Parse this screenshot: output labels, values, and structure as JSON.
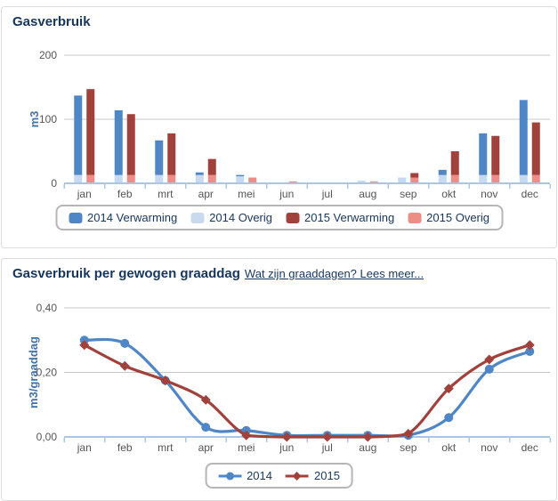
{
  "colors": {
    "title": "#17365d",
    "axis_title_blue": "#4272a8",
    "tick_text": "#555555",
    "gridline": "#c8c8c8",
    "axis_line": "#a9c6e5",
    "panel_border": "#dcdcdc",
    "legend_border": "#b6b6b6",
    "blue_2014": "#4f86c6",
    "light_blue_2014": "#c9d9f0",
    "red_2015": "#a0413c",
    "pink_2015": "#ee8c86"
  },
  "chart_data": [
    {
      "type": "bar",
      "title": "Gasverbruik",
      "ylabel": "m3",
      "ylim": [
        0,
        200
      ],
      "grid": true,
      "legend_position": "bottom",
      "yticks": [
        {
          "value": 0,
          "label": "0"
        },
        {
          "value": 100,
          "label": "100"
        },
        {
          "value": 200,
          "label": "200"
        }
      ],
      "categories": [
        "jan",
        "feb",
        "mrt",
        "apr",
        "mei",
        "jun",
        "jul",
        "aug",
        "sep",
        "okt",
        "nov",
        "dec"
      ],
      "series": [
        {
          "name": "2014 Verwarming",
          "color": "#4f86c6",
          "stack": "2014",
          "values": [
            124,
            101,
            54,
            4,
            2,
            0,
            0,
            0,
            0,
            8,
            65,
            117
          ]
        },
        {
          "name": "2014 Overig",
          "color": "#c9d9f0",
          "stack": "2014",
          "values": [
            13,
            13,
            13,
            13,
            11,
            0,
            0,
            4,
            9,
            13,
            13,
            13
          ]
        },
        {
          "name": "2015 Verwarming",
          "color": "#a0413c",
          "stack": "2015",
          "values": [
            134,
            95,
            65,
            25,
            0,
            0,
            0,
            0,
            7,
            37,
            61,
            82
          ]
        },
        {
          "name": "2015 Overig",
          "color": "#ee8c86",
          "stack": "2015",
          "values": [
            13,
            13,
            13,
            13,
            9,
            3,
            0,
            3,
            9,
            13,
            13,
            13
          ]
        }
      ]
    },
    {
      "type": "line",
      "title": "Gasverbruik per gewogen graaddag",
      "link_text": "Wat zijn graaddagen? Lees meer...",
      "ylabel": "m3/graaddag",
      "ylim": [
        0,
        0.4
      ],
      "grid": true,
      "legend_position": "bottom",
      "yticks": [
        {
          "value": 0,
          "label": "0,00"
        },
        {
          "value": 0.2,
          "label": "0,20"
        },
        {
          "value": 0.4,
          "label": "0,40"
        }
      ],
      "categories": [
        "jan",
        "feb",
        "mrt",
        "apr",
        "mei",
        "jun",
        "jul",
        "aug",
        "sep",
        "okt",
        "nov",
        "dec"
      ],
      "series": [
        {
          "name": "2014",
          "color": "#4f86c6",
          "marker": "circle",
          "values": [
            0.3,
            0.29,
            0.175,
            0.03,
            0.02,
            0.005,
            0.005,
            0.005,
            0.005,
            0.06,
            0.21,
            0.265
          ]
        },
        {
          "name": "2015",
          "color": "#a0413c",
          "marker": "diamond",
          "values": [
            0.285,
            0.22,
            0.175,
            0.115,
            0.005,
            0.0,
            0.0,
            0.0,
            0.01,
            0.15,
            0.24,
            0.285
          ]
        }
      ]
    }
  ]
}
